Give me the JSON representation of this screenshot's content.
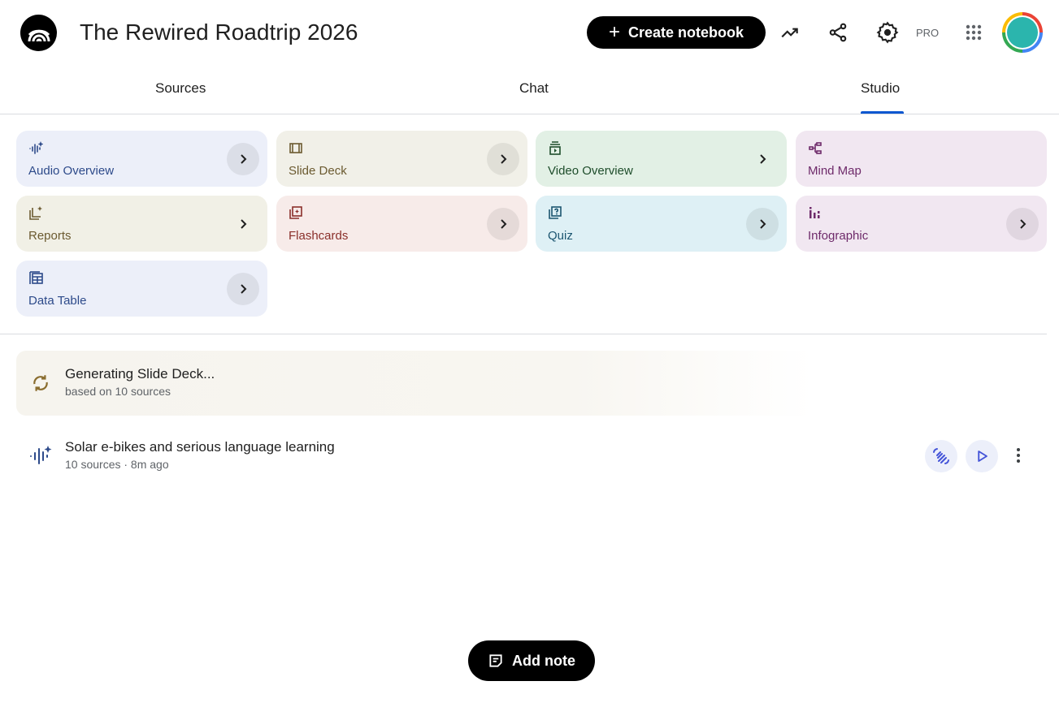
{
  "header": {
    "title": "The Rewired Roadtrip 2026",
    "create_label": "Create notebook",
    "pro_label": "PRO"
  },
  "tabs": [
    {
      "label": "Sources"
    },
    {
      "label": "Chat"
    },
    {
      "label": "Studio",
      "selected": true
    }
  ],
  "studio_tools": [
    {
      "label": "Audio Overview",
      "icon": "audio-waveform-sparkle-icon",
      "bg": "#eceff9",
      "fg": "#2d4a8a"
    },
    {
      "label": "Slide Deck",
      "icon": "slides-icon",
      "bg": "#f1f0e8",
      "fg": "#6b5a30"
    },
    {
      "label": "Video Overview",
      "icon": "video-icon",
      "bg": "#e2f0e5",
      "fg": "#1e4d2b"
    },
    {
      "label": "Mind Map",
      "icon": "mind-map-icon",
      "bg": "#f1e7f1",
      "fg": "#6e2a6a"
    },
    {
      "label": "Reports",
      "icon": "reports-icon",
      "bg": "#f1f0e6",
      "fg": "#6b5a30"
    },
    {
      "label": "Flashcards",
      "icon": "flashcards-icon",
      "bg": "#f7ebe9",
      "fg": "#8a2f2a"
    },
    {
      "label": "Quiz",
      "icon": "quiz-icon",
      "bg": "#def0f5",
      "fg": "#1b5570"
    },
    {
      "label": "Infographic",
      "icon": "infographic-icon",
      "bg": "#f1e7f1",
      "fg": "#6e2a6a"
    },
    {
      "label": "Data Table",
      "icon": "data-table-icon",
      "bg": "#eceff9",
      "fg": "#2d4a8a"
    }
  ],
  "generating": {
    "title": "Generating Slide Deck...",
    "subtitle": "based on 10 sources"
  },
  "artifacts": [
    {
      "title": "Solar e-bikes and serious language learning",
      "subtitle": "10 sources · 8m ago"
    }
  ],
  "add_note_label": "Add note",
  "colors": {
    "accent": "#0b57d0",
    "generating_icon": "#8a6d2f"
  }
}
